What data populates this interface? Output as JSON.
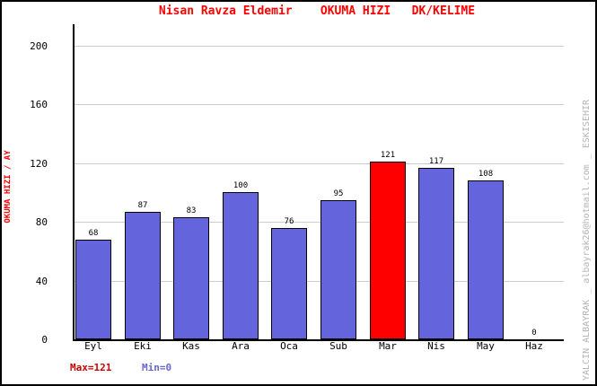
{
  "title": "Nisan Ravza Eldemir    OKUMA HIZI   DK/KELIME",
  "chart_data": {
    "type": "bar",
    "title": "Nisan Ravza Eldemir    OKUMA HIZI   DK/KELIME",
    "categories": [
      "Eyl",
      "Eki",
      "Kas",
      "Ara",
      "Oca",
      "Sub",
      "Mar",
      "Nis",
      "May",
      "Haz"
    ],
    "values": [
      68,
      87,
      83,
      100,
      76,
      95,
      121,
      117,
      108,
      0
    ],
    "highlight_index": 6,
    "highlight_category": "Mar",
    "ylabel": "OKUMA HIZI / AY",
    "xlabel": "",
    "yticks": [
      0,
      40,
      80,
      120,
      160,
      200
    ],
    "ylim": [
      0,
      215
    ],
    "grid": true,
    "legend_position": "none",
    "bar_color": "#6464dc",
    "highlight_color": "#ff0000",
    "max": 121,
    "min": 0
  },
  "footer": {
    "max_label": "Max=121",
    "min_label": "Min=0"
  },
  "watermark": "YALCIN ALBAYRAK _ albayrak26@hotmail.com _ ESKISEHIR",
  "colors": {
    "title": "#ff0000",
    "ylabel": "#ff0000",
    "max_label": "#cc0000",
    "min_label": "#6666cc",
    "bar_blue": "#6464dc",
    "bar_red": "#ff0000",
    "grid": "#cccccc",
    "axis": "#000000",
    "watermark": "#b4b4b4",
    "background": "#ffffff"
  }
}
